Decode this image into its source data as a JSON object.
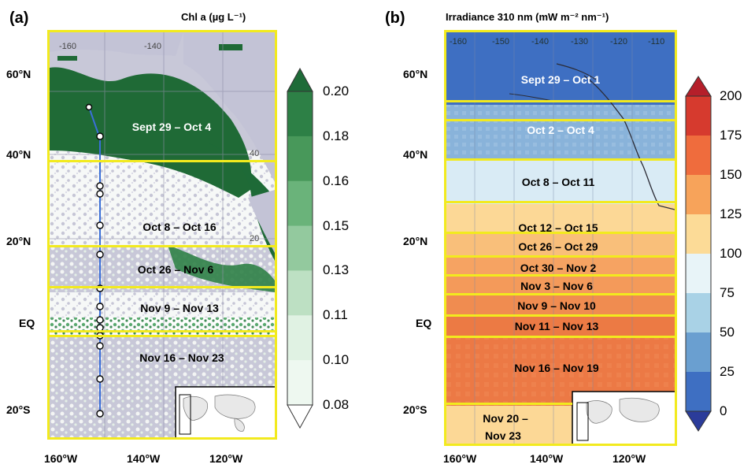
{
  "panel_a": {
    "letter": "(a)",
    "title": "Chl a (µg L⁻¹)",
    "lat_labels": [
      "60°N",
      "40°N",
      "20°N",
      "EQ",
      "20°S"
    ],
    "lon_labels": [
      "160°W",
      "140°W",
      "120°W"
    ],
    "inner_labels": [
      "-160",
      "-140",
      "40",
      "20"
    ],
    "bands": [
      "Sept 29 – Oct 4",
      "Oct 8 – Oct 16",
      "Oct 26 – Nov 6",
      "Nov 9 – Nov 13",
      "Nov 16 – Nov 23"
    ],
    "colorbar": {
      "ticks": [
        "0.20",
        "0.18",
        "0.16",
        "0.15",
        "0.13",
        "0.11",
        "0.10",
        "0.08"
      ],
      "colors": [
        "#1e6b38",
        "#2d8046",
        "#48985a",
        "#6ab37a",
        "#93c99e",
        "#bde0c3",
        "#e0f2e3",
        "#eef8f0"
      ]
    }
  },
  "panel_b": {
    "letter": "(b)",
    "title": "Irradiance 310 nm (mW m⁻² nm⁻¹)",
    "lat_labels": [
      "60°N",
      "40°N",
      "20°N",
      "EQ",
      "20°S"
    ],
    "lon_labels": [
      "160°W",
      "140°W",
      "120°W"
    ],
    "inner_labels": [
      "-160",
      "-150",
      "-140",
      "-130",
      "-120",
      "-110"
    ],
    "bands": [
      "Sept 29 – Oct 1",
      "Oct 2 – Oct 4",
      "Oct 8 – Oct 11",
      "Oct 12 – Oct 15",
      "Oct 26 – Oct 29",
      "Oct 30 – Nov 2",
      "Nov 3 – Nov 6",
      "Nov 9 – Nov 10",
      "Nov 11 – Nov 13",
      "Nov 16 – Nov 19",
      "Nov 20 –",
      "Nov 23"
    ],
    "colorbar": {
      "ticks": [
        "200",
        "175",
        "150",
        "125",
        "100",
        "75",
        "50",
        "25",
        "0"
      ],
      "colors": [
        "#b51f2a",
        "#d63a2e",
        "#ef6c3d",
        "#f7a35a",
        "#fcdb97",
        "#e8f4f8",
        "#a9d2e6",
        "#6a9fd0",
        "#3e6fc2",
        "#2b3c9a"
      ]
    }
  },
  "colors": {
    "land": "#c3c3d6",
    "ocean_white": "#ffffff",
    "band_outline": "#f2ea1e",
    "cruise_track": "#3a6fd8",
    "chl_dark": "#1f6a36"
  }
}
